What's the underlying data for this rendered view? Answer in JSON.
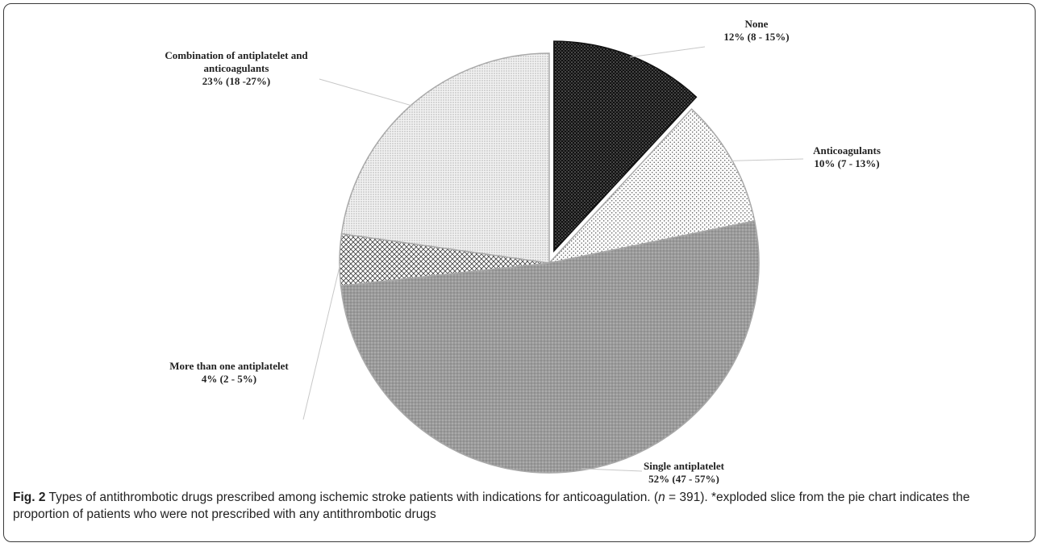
{
  "chart_data": {
    "type": "pie",
    "title": "",
    "slices": [
      {
        "label": "None",
        "value_text": "12% (8 - 15%)",
        "value": 12,
        "exploded": true,
        "color": "#151515",
        "pattern": "dark-dots"
      },
      {
        "label": "Anticoagulants",
        "value_text": "10% (7 - 13%)",
        "value": 10,
        "exploded": false,
        "color": "#ffffff",
        "pattern": "sparse-dots"
      },
      {
        "label": "Single antiplatelet",
        "value_text": "52% (47 - 57%)",
        "value": 52,
        "exploded": false,
        "color": "#9a9a9a",
        "pattern": "gray-dots"
      },
      {
        "label": "More than one antiplatelet",
        "value_text": "4% (2 - 5%)",
        "value": 4,
        "exploded": false,
        "color": "#ffffff",
        "pattern": "crosshatch"
      },
      {
        "label": "Combination of antiplatelet and anticoagulants",
        "label_lines": [
          "Combination of antiplatelet and",
          "anticoagulants"
        ],
        "value_text": "23% (18 -27%)",
        "value": 23,
        "exploded": false,
        "color": "#e6e6e6",
        "pattern": "fine-dots"
      }
    ]
  },
  "caption": {
    "fig_num": "Fig. 2",
    "text_before_n": " Types of antithrombotic drugs prescribed among ischemic stroke patients with indications for anticoagulation. (",
    "n_symbol": "n",
    "text_after_n": " = 391). *exploded slice from the pie chart indicates the proportion of patients who were not prescribed with any antithrombotic drugs"
  }
}
